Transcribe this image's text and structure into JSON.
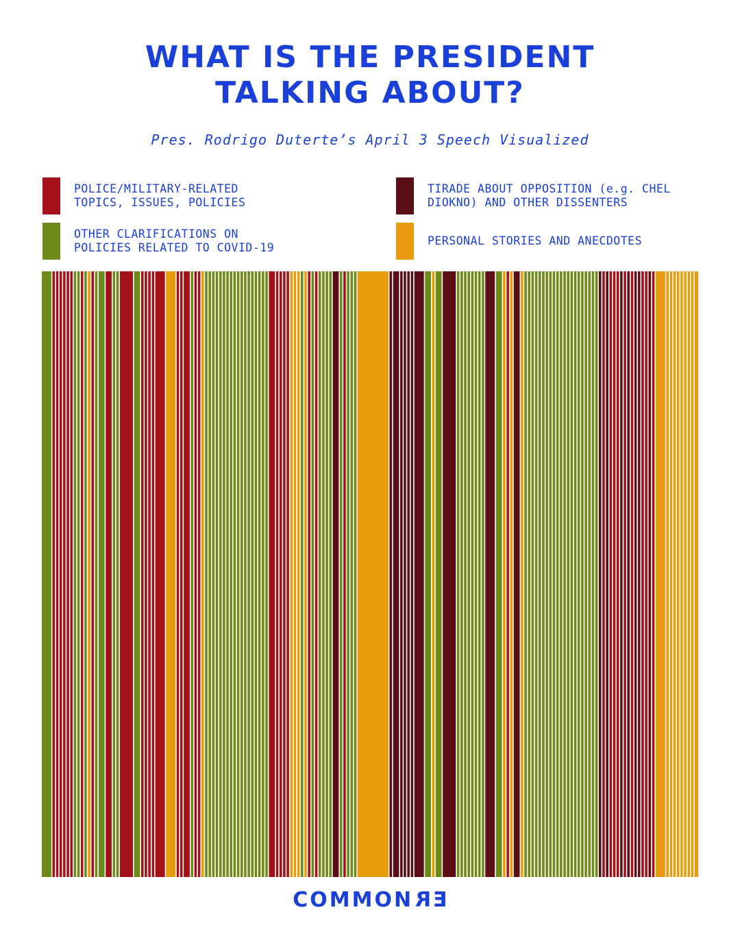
{
  "title_lines": [
    "WHAT IS THE PRESIDENT",
    "TALKING ABOUT?"
  ],
  "subtitle": "Pres. Rodrigo Duterte’s April 3 Speech Visualized",
  "legend": [
    {
      "key": "police",
      "lines": [
        "POLICE/MILITARY-RELATED",
        "TOPICS, ISSUES, POLICIES"
      ],
      "color": "#a31218"
    },
    {
      "key": "opposition",
      "lines": [
        "TIRADE ABOUT OPPOSITION (e.g. CHEL",
        "DIOKNO) AND OTHER DISSENTERS"
      ],
      "color": "#5a0f16"
    },
    {
      "key": "covid",
      "lines": [
        "OTHER CLARIFICATIONS ON",
        "POLICIES RELATED TO COVID-19"
      ],
      "color": "#6e8b1a"
    },
    {
      "key": "personal",
      "lines": [
        "PERSONAL STORIES AND ANECDOTES"
      ],
      "color": "#e89b0c"
    }
  ],
  "chart_data": {
    "type": "barcode",
    "description_of_segments": "sequence of speech segments in order, each with a category and relative length",
    "categories": [
      "police",
      "opposition",
      "covid",
      "personal"
    ],
    "segments": [
      [
        "covid",
        3
      ],
      [
        "police",
        1
      ],
      [
        "police",
        1
      ],
      [
        "police",
        1
      ],
      [
        "police",
        1
      ],
      [
        "police",
        1
      ],
      [
        "police",
        1
      ],
      [
        "covid",
        1
      ],
      [
        "covid",
        1
      ],
      [
        "police",
        1
      ],
      [
        "covid",
        1
      ],
      [
        "personal",
        1
      ],
      [
        "police",
        1
      ],
      [
        "covid",
        1
      ],
      [
        "covid",
        2
      ],
      [
        "police",
        2
      ],
      [
        "covid",
        1
      ],
      [
        "covid",
        1
      ],
      [
        "police",
        4
      ],
      [
        "covid",
        2
      ],
      [
        "police",
        1
      ],
      [
        "police",
        1
      ],
      [
        "police",
        1
      ],
      [
        "police",
        1
      ],
      [
        "police",
        3
      ],
      [
        "personal",
        3
      ],
      [
        "police",
        1
      ],
      [
        "police",
        1
      ],
      [
        "police",
        2
      ],
      [
        "covid",
        1
      ],
      [
        "police",
        1
      ],
      [
        "police",
        1
      ],
      [
        "personal",
        1
      ],
      [
        "covid",
        1
      ],
      [
        "covid",
        1
      ],
      [
        "covid",
        1
      ],
      [
        "covid",
        1
      ],
      [
        "covid",
        1
      ],
      [
        "covid",
        1
      ],
      [
        "covid",
        1
      ],
      [
        "covid",
        1
      ],
      [
        "covid",
        1
      ],
      [
        "covid",
        1
      ],
      [
        "covid",
        1
      ],
      [
        "covid",
        1
      ],
      [
        "covid",
        1
      ],
      [
        "covid",
        1
      ],
      [
        "covid",
        1
      ],
      [
        "covid",
        1
      ],
      [
        "covid",
        1
      ],
      [
        "covid",
        1
      ],
      [
        "police",
        2
      ],
      [
        "police",
        1
      ],
      [
        "police",
        1
      ],
      [
        "police",
        1
      ],
      [
        "police",
        1
      ],
      [
        "personal",
        1
      ],
      [
        "personal",
        1
      ],
      [
        "personal",
        1
      ],
      [
        "covid",
        1
      ],
      [
        "personal",
        1
      ],
      [
        "police",
        1
      ],
      [
        "covid",
        1
      ],
      [
        "police",
        1
      ],
      [
        "covid",
        1
      ],
      [
        "covid",
        1
      ],
      [
        "covid",
        1
      ],
      [
        "covid",
        1
      ],
      [
        "opposition",
        2
      ],
      [
        "covid",
        1
      ],
      [
        "police",
        1
      ],
      [
        "covid",
        1
      ],
      [
        "covid",
        1
      ],
      [
        "covid",
        1
      ],
      [
        "personal",
        9
      ],
      [
        "opposition",
        1
      ],
      [
        "opposition",
        2
      ],
      [
        "opposition",
        1
      ],
      [
        "opposition",
        1
      ],
      [
        "opposition",
        1
      ],
      [
        "opposition",
        1
      ],
      [
        "opposition",
        3
      ],
      [
        "covid",
        2
      ],
      [
        "personal",
        1
      ],
      [
        "covid",
        2
      ],
      [
        "opposition",
        4
      ],
      [
        "covid",
        1
      ],
      [
        "covid",
        1
      ],
      [
        "covid",
        1
      ],
      [
        "covid",
        1
      ],
      [
        "covid",
        1
      ],
      [
        "covid",
        1
      ],
      [
        "covid",
        1
      ],
      [
        "covid",
        1
      ],
      [
        "opposition",
        3
      ],
      [
        "covid",
        2
      ],
      [
        "personal",
        1
      ],
      [
        "police",
        1
      ],
      [
        "personal",
        1
      ],
      [
        "opposition",
        2
      ],
      [
        "personal",
        1
      ],
      [
        "covid",
        1
      ],
      [
        "covid",
        1
      ],
      [
        "covid",
        1
      ],
      [
        "covid",
        1
      ],
      [
        "covid",
        1
      ],
      [
        "covid",
        1
      ],
      [
        "covid",
        1
      ],
      [
        "covid",
        1
      ],
      [
        "covid",
        1
      ],
      [
        "covid",
        1
      ],
      [
        "covid",
        1
      ],
      [
        "covid",
        1
      ],
      [
        "covid",
        1
      ],
      [
        "covid",
        1
      ],
      [
        "covid",
        1
      ],
      [
        "covid",
        1
      ],
      [
        "covid",
        1
      ],
      [
        "covid",
        1
      ],
      [
        "covid",
        1
      ],
      [
        "covid",
        1
      ],
      [
        "covid",
        1
      ],
      [
        "opposition",
        1
      ],
      [
        "police",
        1
      ],
      [
        "opposition",
        1
      ],
      [
        "police",
        1
      ],
      [
        "police",
        1
      ],
      [
        "police",
        1
      ],
      [
        "opposition",
        1
      ],
      [
        "police",
        1
      ],
      [
        "opposition",
        1
      ],
      [
        "police",
        1
      ],
      [
        "opposition",
        1
      ],
      [
        "opposition",
        1
      ],
      [
        "police",
        1
      ],
      [
        "police",
        1
      ],
      [
        "opposition",
        1
      ],
      [
        "police",
        1
      ],
      [
        "personal",
        3
      ],
      [
        "personal",
        1
      ],
      [
        "personal",
        1
      ],
      [
        "personal",
        1
      ],
      [
        "personal",
        1
      ],
      [
        "personal",
        1
      ],
      [
        "personal",
        1
      ],
      [
        "personal",
        1
      ],
      [
        "personal",
        1
      ],
      [
        "personal",
        1
      ]
    ]
  },
  "footer_brand": {
    "prefix": "COMMON",
    "flipped": "ER"
  }
}
